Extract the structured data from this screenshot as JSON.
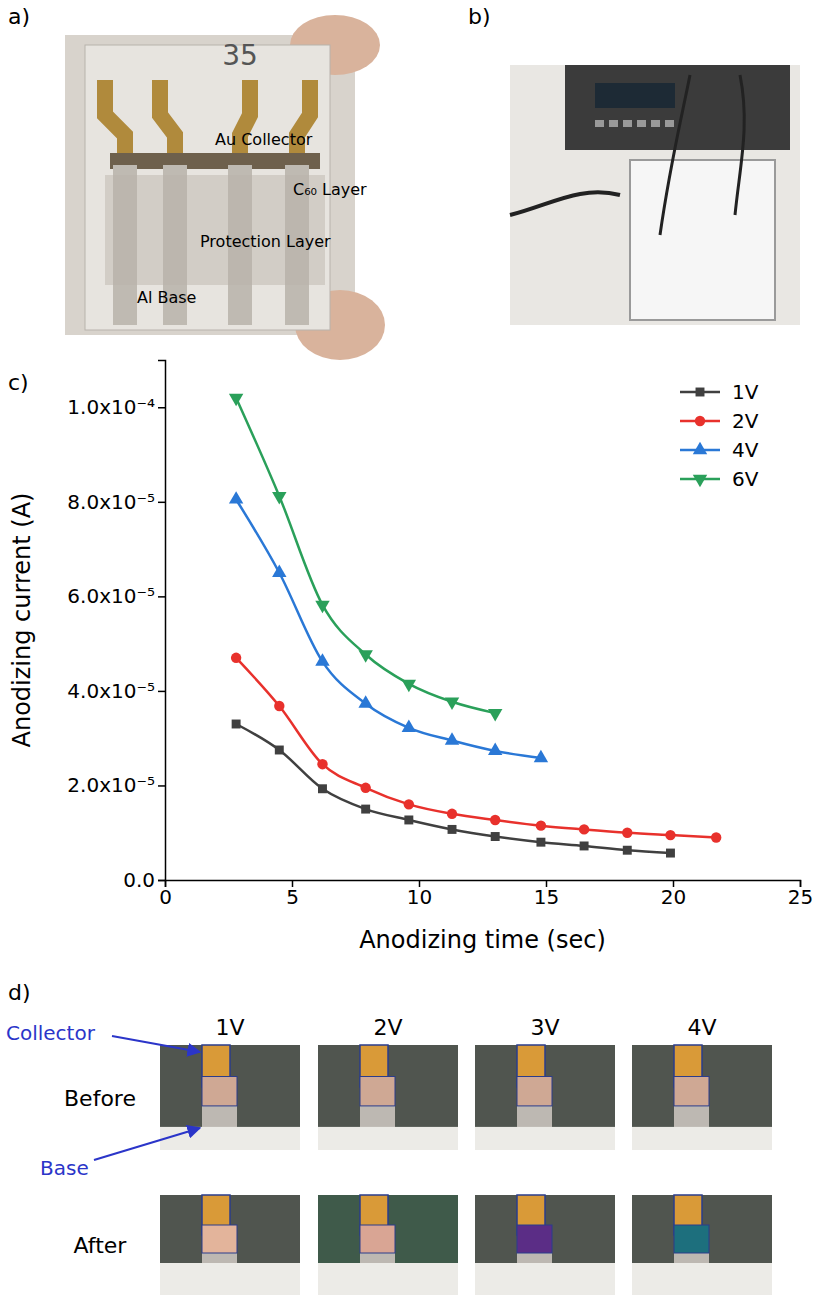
{
  "panel_labels": [
    "a)",
    "b)",
    "c)",
    "d)"
  ],
  "photo_a": {
    "labels": [
      "35",
      "Au Collector",
      "C₆₀ Layer",
      "Protection Layer",
      "Al Base"
    ]
  },
  "chart_data": {
    "type": "line",
    "x_label": "Anodizing time (sec)",
    "y_label": "Anodizing current (A)",
    "xlim": [
      0,
      25
    ],
    "xticks": [
      0,
      5,
      10,
      15,
      20,
      25
    ],
    "ylim": [
      0,
      0.00011
    ],
    "yticks": [
      {
        "value": 0,
        "label": "0.0"
      },
      {
        "value": 2e-05,
        "label": "2.0x10⁻⁵"
      },
      {
        "value": 4e-05,
        "label": "4.0x10⁻⁵"
      },
      {
        "value": 6e-05,
        "label": "6.0x10⁻⁵"
      },
      {
        "value": 8e-05,
        "label": "8.0x10⁻⁵"
      },
      {
        "value": 0.0001,
        "label": "1.0x10⁻⁴"
      }
    ],
    "grid": false,
    "legend": "top-right",
    "series": [
      {
        "name": "1V",
        "color": "#404040",
        "marker": "square",
        "line_style": "solid",
        "x": [
          2.8,
          4.5,
          6.2,
          7.9,
          9.6,
          11.3,
          13.0,
          14.8,
          16.5,
          18.2,
          19.9
        ],
        "values": [
          3.3e-05,
          2.75e-05,
          1.93e-05,
          1.5e-05,
          1.27e-05,
          1.07e-05,
          9.2e-06,
          8e-06,
          7.2e-06,
          6.3e-06,
          5.7e-06
        ]
      },
      {
        "name": "2V",
        "color": "#e8312c",
        "marker": "circle",
        "line_style": "solid",
        "x": [
          2.8,
          4.5,
          6.2,
          7.9,
          9.6,
          11.3,
          13.0,
          14.8,
          16.5,
          18.2,
          19.9,
          21.7
        ],
        "values": [
          4.7e-05,
          3.68e-05,
          2.45e-05,
          1.95e-05,
          1.6e-05,
          1.4e-05,
          1.27e-05,
          1.15e-05,
          1.07e-05,
          1e-05,
          9.5e-06,
          9e-06
        ]
      },
      {
        "name": "4V",
        "color": "#2a78d6",
        "marker": "triangle-up",
        "line_style": "solid",
        "x": [
          2.8,
          4.5,
          6.2,
          7.9,
          9.6,
          11.3,
          13.0,
          14.8
        ],
        "values": [
          8.05e-05,
          6.5e-05,
          4.62e-05,
          3.73e-05,
          3.22e-05,
          2.95e-05,
          2.73e-05,
          2.58e-05
        ]
      },
      {
        "name": "6V",
        "color": "#2aa05a",
        "marker": "triangle-down",
        "line_style": "solid",
        "x": [
          2.8,
          4.5,
          6.2,
          7.9,
          9.6,
          11.3,
          13.0
        ],
        "values": [
          0.000102,
          8.12e-05,
          5.82e-05,
          4.77e-05,
          4.15e-05,
          3.77e-05,
          3.53e-05
        ]
      }
    ]
  },
  "photo_d": {
    "columns": [
      "1V",
      "2V",
      "3V",
      "4V"
    ],
    "rows": [
      "Before",
      "After"
    ],
    "annotations": [
      "Collector",
      "Base"
    ]
  }
}
